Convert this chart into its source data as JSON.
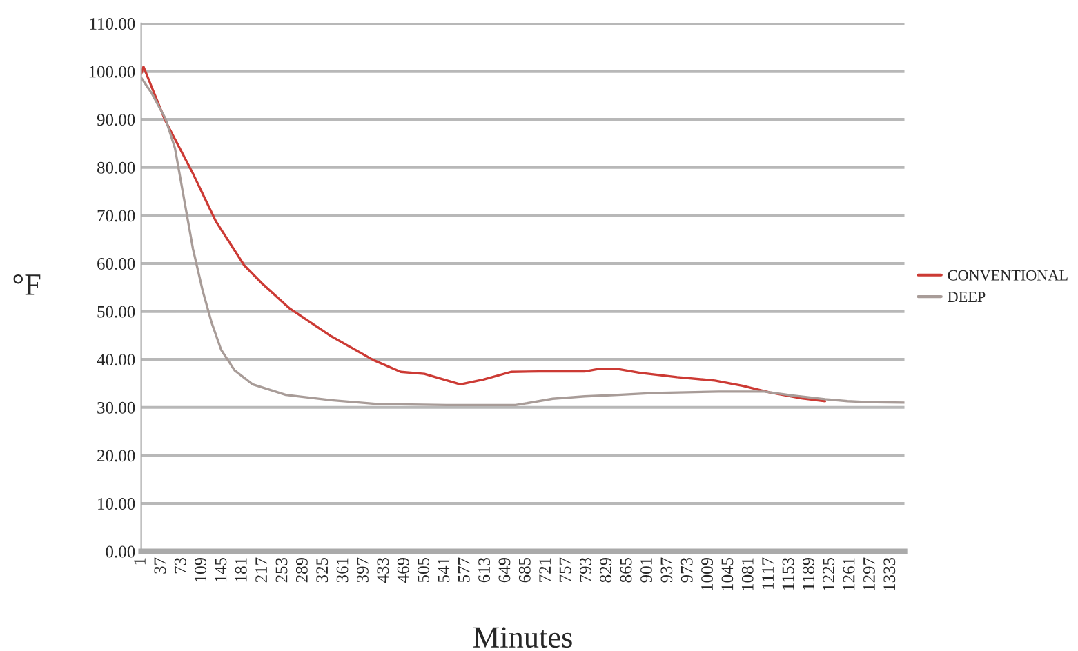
{
  "chart_data": {
    "type": "line",
    "xlabel": "Minutes",
    "ylabel": "°F",
    "xlim": [
      1,
      1357
    ],
    "xticks": [
      1,
      37,
      73,
      109,
      145,
      181,
      217,
      253,
      289,
      325,
      361,
      397,
      433,
      469,
      505,
      541,
      577,
      613,
      649,
      685,
      721,
      757,
      793,
      829,
      865,
      901,
      937,
      973,
      1009,
      1045,
      1081,
      1117,
      1153,
      1189,
      1225,
      1261,
      1297,
      1333
    ],
    "ylim": [
      0,
      110
    ],
    "yticks": [
      {
        "value": 0,
        "label": "0.00"
      },
      {
        "value": 10,
        "label": "10.00"
      },
      {
        "value": 20,
        "label": "20.00"
      },
      {
        "value": 30,
        "label": "30.00"
      },
      {
        "value": 40,
        "label": "40.00"
      },
      {
        "value": 50,
        "label": "50.00"
      },
      {
        "value": 60,
        "label": "60.00"
      },
      {
        "value": 70,
        "label": "70.00"
      },
      {
        "value": 80,
        "label": "80.00"
      },
      {
        "value": 90,
        "label": "90.00"
      },
      {
        "value": 100,
        "label": "100.00"
      },
      {
        "value": 110,
        "label": "110.00"
      }
    ],
    "grid": "y",
    "legend": "right",
    "marker": "none",
    "line_style": "solid",
    "series": [
      {
        "name": "CONVENTIONAL",
        "color": "#cc3a34",
        "x": [
          1,
          5,
          44,
          93,
          134,
          184,
          216,
          265,
          339,
          413,
          462,
          504,
          568,
          609,
          658,
          708,
          789,
          813,
          848,
          887,
          953,
          1020,
          1069,
          1118,
          1174,
          1216
        ],
        "values": [
          99.5,
          101,
          89.7,
          78.7,
          68.7,
          59.6,
          55.8,
          50.6,
          44.8,
          39.9,
          37.4,
          37,
          34.8,
          35.8,
          37.4,
          37.5,
          37.5,
          38,
          38,
          37.2,
          36.3,
          35.6,
          34.5,
          33.1,
          31.9,
          31.3
        ]
      },
      {
        "name": "DEEP",
        "color": "#a89c98",
        "x": [
          1,
          20,
          44,
          61,
          77,
          93,
          110,
          126,
          143,
          167,
          199,
          258,
          339,
          420,
          543,
          666,
          683,
          732,
          789,
          848,
          912,
          1027,
          1108,
          1157,
          1216,
          1256,
          1292,
          1357
        ],
        "values": [
          98.7,
          95.4,
          90.2,
          84,
          73.5,
          63,
          54.4,
          47.7,
          42,
          37.7,
          34.8,
          32.6,
          31.5,
          30.7,
          30.5,
          30.5,
          30.8,
          31.8,
          32.3,
          32.6,
          33,
          33.3,
          33.3,
          32.5,
          31.7,
          31.3,
          31.1,
          31
        ]
      }
    ]
  }
}
